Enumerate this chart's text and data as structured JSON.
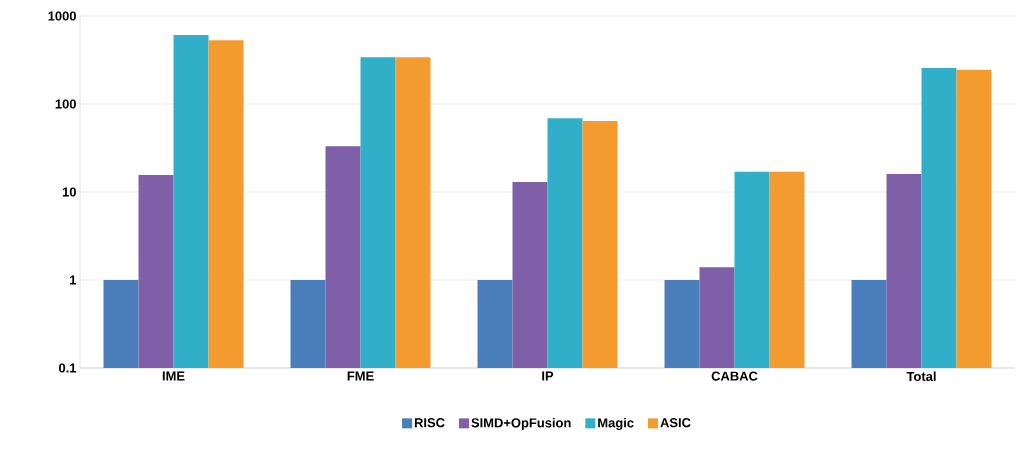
{
  "chart_data": {
    "type": "bar",
    "log": "y",
    "grid": "y",
    "legend": "bottom",
    "categories": [
      "IME",
      "FME",
      "IP",
      "CABAC",
      "Total"
    ],
    "ylim": [
      0.1,
      1000
    ],
    "yticks": [
      0.1,
      1,
      10,
      100,
      1000
    ],
    "series": [
      {
        "name": "RISC",
        "color": "#4a7ebb",
        "values": [
          1,
          1,
          1,
          1,
          1
        ]
      },
      {
        "name": "SIMD+OpFusion",
        "color": "#7f5fa8",
        "values": [
          15.6,
          33,
          13,
          1.4,
          16
        ]
      },
      {
        "name": "Magic",
        "color": "#31afc8",
        "values": [
          610,
          340,
          69,
          17,
          257
        ]
      },
      {
        "name": "ASIC",
        "color": "#f49b30",
        "values": [
          530,
          340,
          64,
          17,
          245
        ]
      }
    ]
  }
}
